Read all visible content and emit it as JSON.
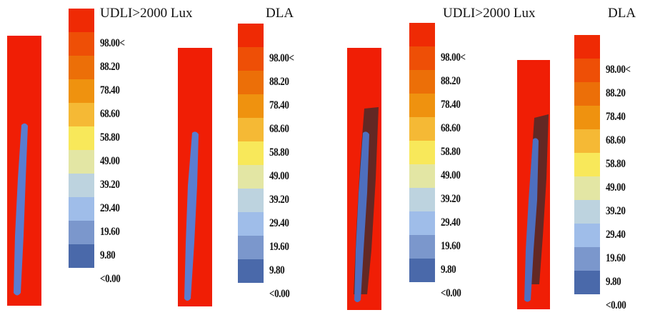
{
  "panels": [
    {
      "title": "UDLI>2000 Lux"
    },
    {
      "title": "DLA"
    },
    {
      "title": "UDLI>2000 Lux"
    },
    {
      "title": "DLA"
    }
  ],
  "legend": {
    "labels": [
      "98.00<",
      "88.20",
      "78.40",
      "68.60",
      "58.80",
      "49.00",
      "39.20",
      "29.40",
      "19.60",
      "9.80",
      "<0.00"
    ],
    "colors": [
      "#ef2a04",
      "#ee4f06",
      "#ec6f08",
      "#ef920f",
      "#f5b935",
      "#f8e85a",
      "#e3e6a4",
      "#bdd3df",
      "#9fbde9",
      "#7b97cc",
      "#4a69aa"
    ]
  },
  "colors": {
    "strip": "#f01e05",
    "shape": "#5a7dd0",
    "shadow": "#4a2a2a"
  }
}
